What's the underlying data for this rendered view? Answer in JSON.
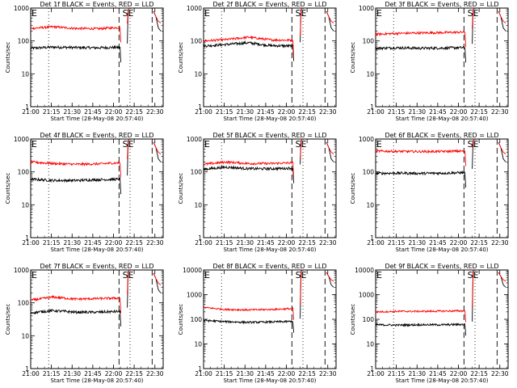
{
  "chart_data": [
    {
      "type": "line",
      "title": "Det 1f BLACK = Events, RED = LLD",
      "ylabel": "Counts/sec",
      "xlabel": "Start Time (28-May-08 20:57:40)",
      "yscale": "log",
      "ylim": [
        1,
        1000
      ],
      "ytick_labels": [
        "1",
        "10",
        "100",
        "1000"
      ],
      "xlim": [
        "21:00",
        "22:36"
      ],
      "xtick_labels": [
        "21:00",
        "21:15",
        "21:30",
        "21:45",
        "22:00",
        "22:15",
        "22:30"
      ],
      "markers": {
        "E": "21:00",
        "SE": "22:10"
      },
      "series": [
        {
          "color": "#000000",
          "level": [
            60,
            65,
            63,
            62,
            64
          ]
        },
        {
          "color": "#ff0000",
          "level": [
            240,
            270,
            240,
            235,
            260
          ]
        }
      ]
    },
    {
      "type": "line",
      "title": "Det 2f BLACK = Events, RED = LLD",
      "ylabel": "Counts/sec",
      "xlabel": "Start Time (28-May-08 20:57:40)",
      "yscale": "log",
      "ylim": [
        1,
        1000
      ],
      "ytick_labels": [
        "1",
        "10",
        "100",
        "1000"
      ],
      "xlim": [
        "21:00",
        "22:36"
      ],
      "xtick_labels": [
        "21:00",
        "21:15",
        "21:30",
        "21:45",
        "22:00",
        "22:15",
        "22:30"
      ],
      "markers": {
        "E": "21:00",
        "SE": "22:10"
      },
      "series": [
        {
          "color": "#000000",
          "level": [
            70,
            78,
            88,
            72,
            70
          ]
        },
        {
          "color": "#ff0000",
          "level": [
            100,
            110,
            130,
            108,
            105
          ]
        }
      ]
    },
    {
      "type": "line",
      "title": "Det 3f BLACK = Events, RED = LLD",
      "ylabel": "Counts/sec",
      "xlabel": "Start Time (28-May-08 20:57:40)",
      "yscale": "log",
      "ylim": [
        1,
        1000
      ],
      "ytick_labels": [
        "1",
        "10",
        "100",
        "1000"
      ],
      "xlim": [
        "21:00",
        "22:36"
      ],
      "xtick_labels": [
        "21:00",
        "21:15",
        "21:30",
        "21:45",
        "22:00",
        "22:15",
        "22:30"
      ],
      "markers": {
        "E": "21:00",
        "SE": "22:10"
      },
      "series": [
        {
          "color": "#000000",
          "level": [
            60,
            62,
            60,
            61,
            63
          ]
        },
        {
          "color": "#ff0000",
          "level": [
            160,
            170,
            175,
            180,
            185
          ]
        }
      ]
    },
    {
      "type": "line",
      "title": "Det 4f BLACK = Events, RED = LLD",
      "ylabel": "Counts/sec",
      "xlabel": "Start Time (28-May-08 20:57:40)",
      "yscale": "log",
      "ylim": [
        1,
        1000
      ],
      "ytick_labels": [
        "1",
        "10",
        "100",
        "1000"
      ],
      "xlim": [
        "21:00",
        "22:36"
      ],
      "xtick_labels": [
        "21:00",
        "21:15",
        "21:30",
        "21:45",
        "22:00",
        "22:15",
        "22:30"
      ],
      "markers": {
        "E": "21:00",
        "SE": "22:10"
      },
      "series": [
        {
          "color": "#000000",
          "level": [
            60,
            55,
            55,
            58,
            60
          ]
        },
        {
          "color": "#ff0000",
          "level": [
            200,
            180,
            170,
            175,
            190
          ]
        }
      ]
    },
    {
      "type": "line",
      "title": "Det 5f BLACK = Events, RED = LLD",
      "ylabel": "Counts/sec",
      "xlabel": "Start Time (28-May-08 20:57:40)",
      "yscale": "log",
      "ylim": [
        1,
        1000
      ],
      "ytick_labels": [
        "1",
        "10",
        "100",
        "1000"
      ],
      "xlim": [
        "21:00",
        "22:36"
      ],
      "xtick_labels": [
        "21:00",
        "21:15",
        "21:30",
        "21:45",
        "22:00",
        "22:15",
        "22:30"
      ],
      "markers": {
        "E": "21:00",
        "SE": "22:10"
      },
      "series": [
        {
          "color": "#000000",
          "level": [
            120,
            140,
            125,
            125,
            130
          ]
        },
        {
          "color": "#ff0000",
          "level": [
            170,
            200,
            180,
            180,
            190
          ]
        }
      ]
    },
    {
      "type": "line",
      "title": "Det 6f BLACK = Events, RED = LLD",
      "ylabel": "Counts/sec",
      "xlabel": "Start Time (28-May-08 20:57:40)",
      "yscale": "log",
      "ylim": [
        1,
        1000
      ],
      "ytick_labels": [
        "1",
        "10",
        "100",
        "1000"
      ],
      "xlim": [
        "21:00",
        "22:36"
      ],
      "xtick_labels": [
        "21:00",
        "21:15",
        "21:30",
        "21:45",
        "22:00",
        "22:15",
        "22:30"
      ],
      "markers": {
        "E": "21:00",
        "SE": "22:10"
      },
      "series": [
        {
          "color": "#000000",
          "level": [
            90,
            92,
            90,
            92,
            95
          ]
        },
        {
          "color": "#ff0000",
          "level": [
            430,
            420,
            415,
            420,
            430
          ]
        }
      ]
    },
    {
      "type": "line",
      "title": "Det 7f BLACK = Events, RED = LLD",
      "ylabel": "Counts/sec",
      "xlabel": "Start Time (28-May-08 20:57:40)",
      "yscale": "log",
      "ylim": [
        1,
        1000
      ],
      "ytick_labels": [
        "1",
        "10",
        "100",
        "1000"
      ],
      "xlim": [
        "21:00",
        "22:36"
      ],
      "xtick_labels": [
        "21:00",
        "21:15",
        "21:30",
        "21:45",
        "22:00",
        "22:15",
        "22:30"
      ],
      "markers": {
        "E": "21:00",
        "SE": "22:10"
      },
      "series": [
        {
          "color": "#000000",
          "level": [
            50,
            58,
            52,
            52,
            55
          ]
        },
        {
          "color": "#ff0000",
          "level": [
            120,
            150,
            130,
            135,
            140
          ]
        }
      ]
    },
    {
      "type": "line",
      "title": "Det 8f BLACK = Events, RED = LLD",
      "ylabel": "Counts/sec",
      "xlabel": "Start Time (28-May-08 20:57:40)",
      "yscale": "log",
      "ylim": [
        1,
        10000
      ],
      "ytick_labels": [
        "1",
        "10",
        "100",
        "1000",
        "10000"
      ],
      "xlim": [
        "21:00",
        "22:36"
      ],
      "xtick_labels": [
        "21:00",
        "21:15",
        "21:30",
        "21:45",
        "22:00",
        "22:15",
        "22:30"
      ],
      "markers": {
        "E": "21:00",
        "SE": "22:10"
      },
      "series": [
        {
          "color": "#000000",
          "level": [
            90,
            80,
            75,
            78,
            82
          ]
        },
        {
          "color": "#ff0000",
          "level": [
            300,
            250,
            240,
            250,
            270
          ]
        }
      ]
    },
    {
      "type": "line",
      "title": "Det 9f BLACK = Events, RED = LLD",
      "ylabel": "Counts/sec",
      "xlabel": "Start Time (28-May-08 20:57:40)",
      "yscale": "log",
      "ylim": [
        1,
        10000
      ],
      "ytick_labels": [
        "1",
        "10",
        "100",
        "1000",
        "10000"
      ],
      "xlim": [
        "21:00",
        "22:36"
      ],
      "xtick_labels": [
        "21:00",
        "21:15",
        "21:30",
        "21:45",
        "22:00",
        "22:15",
        "22:30"
      ],
      "markers": {
        "E": "21:00",
        "SE": "22:10"
      },
      "series": [
        {
          "color": "#000000",
          "level": [
            60,
            58,
            60,
            60,
            62
          ]
        },
        {
          "color": "#ff0000",
          "level": [
            200,
            210,
            210,
            215,
            220
          ]
        }
      ]
    }
  ]
}
